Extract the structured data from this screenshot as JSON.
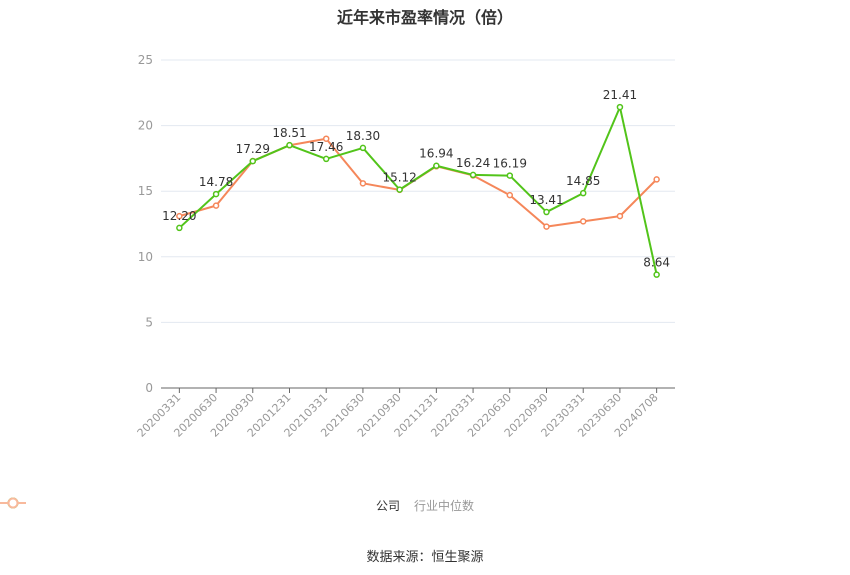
{
  "title": "近年来市盈率情况（倍）",
  "legend": {
    "company": "公司",
    "industry": "行业中位数"
  },
  "source": "数据来源：恒生聚源",
  "colors": {
    "company": "#52c41a",
    "industry": "#f5875a",
    "industry_legend": "#f8b99c",
    "grid": "#e3e8f0",
    "axis": "#666666",
    "tick_label": "#999999"
  },
  "chart_data": {
    "type": "line",
    "title": "近年来市盈率情况（倍）",
    "xlabel": "",
    "ylabel": "",
    "ylim": [
      0,
      25
    ],
    "yticks": [
      0,
      5,
      10,
      15,
      20,
      25
    ],
    "grid": true,
    "legend_position": "bottom",
    "categories": [
      "20200331",
      "20200630",
      "20200930",
      "20201231",
      "20210331",
      "20210630",
      "20210930",
      "20211231",
      "20220331",
      "20220630",
      "20220930",
      "20230331",
      "20230630",
      "20240708"
    ],
    "series": [
      {
        "name": "公司",
        "values": [
          12.2,
          14.78,
          17.29,
          18.51,
          17.46,
          18.3,
          15.12,
          16.94,
          16.24,
          16.19,
          13.41,
          14.85,
          21.41,
          8.64
        ],
        "labels_shown": true
      },
      {
        "name": "行业中位数",
        "values": [
          13.1,
          13.9,
          17.3,
          18.5,
          19.0,
          15.6,
          15.1,
          16.9,
          16.2,
          14.7,
          12.3,
          12.7,
          13.1,
          15.9
        ],
        "labels_shown": false
      }
    ]
  }
}
